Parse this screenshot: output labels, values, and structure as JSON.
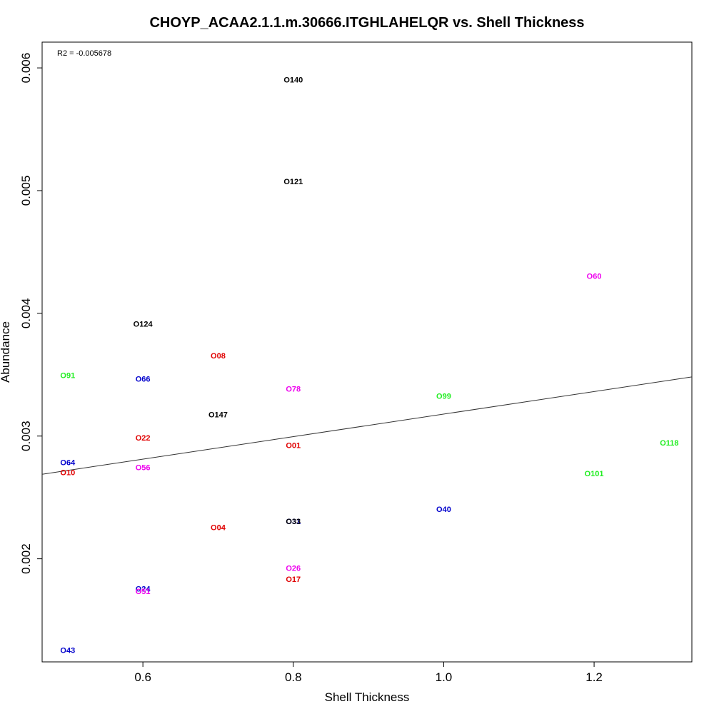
{
  "chart_data": {
    "type": "scatter",
    "title": "CHOYP_ACAA2.1.1.m.30666.ITGHLAHELQR vs. Shell Thickness",
    "xlabel": "Shell Thickness",
    "ylabel": "Abundance",
    "xlim": [
      0.466,
      1.33
    ],
    "ylim": [
      0.00116,
      0.00621
    ],
    "x_ticks": [
      0.6,
      0.8,
      1.0,
      1.2
    ],
    "x_tick_labels": [
      "0.6",
      "0.8",
      "1.0",
      "1.2"
    ],
    "y_ticks": [
      0.002,
      0.003,
      0.004,
      0.005,
      0.006
    ],
    "y_tick_labels": [
      "0.002",
      "0.003",
      "0.004",
      "0.005",
      "0.006"
    ],
    "grid": false,
    "legend": "none",
    "annotation": "R2 = -0.005678",
    "regression_line": {
      "intercept": 0.002261,
      "slope": 0.000918
    },
    "colors": {
      "black": "#000000",
      "red": "#e00000",
      "blue": "#0000cc",
      "green": "#22ee22",
      "magenta": "#ee00ee"
    },
    "points": [
      {
        "label": "O140",
        "x": 0.8,
        "y": 0.0059,
        "color": "black"
      },
      {
        "label": "O121",
        "x": 0.8,
        "y": 0.00507,
        "color": "black"
      },
      {
        "label": "O60",
        "x": 1.2,
        "y": 0.0043,
        "color": "magenta"
      },
      {
        "label": "O124",
        "x": 0.6,
        "y": 0.00391,
        "color": "black"
      },
      {
        "label": "O08",
        "x": 0.7,
        "y": 0.00365,
        "color": "red"
      },
      {
        "label": "O91",
        "x": 0.5,
        "y": 0.00349,
        "color": "green"
      },
      {
        "label": "O66",
        "x": 0.6,
        "y": 0.00346,
        "color": "blue"
      },
      {
        "label": "O78",
        "x": 0.8,
        "y": 0.00338,
        "color": "magenta"
      },
      {
        "label": "O99",
        "x": 1.0,
        "y": 0.00332,
        "color": "green"
      },
      {
        "label": "O147",
        "x": 0.7,
        "y": 0.00317,
        "color": "black"
      },
      {
        "label": "O22",
        "x": 0.6,
        "y": 0.00298,
        "color": "red"
      },
      {
        "label": "O118",
        "x": 1.3,
        "y": 0.00294,
        "color": "green"
      },
      {
        "label": "O01",
        "x": 0.8,
        "y": 0.00292,
        "color": "red"
      },
      {
        "label": "O64",
        "x": 0.5,
        "y": 0.00278,
        "color": "blue"
      },
      {
        "label": "O56",
        "x": 0.6,
        "y": 0.00274,
        "color": "magenta"
      },
      {
        "label": "O10",
        "x": 0.5,
        "y": 0.0027,
        "color": "red"
      },
      {
        "label": "O101",
        "x": 1.2,
        "y": 0.00269,
        "color": "green"
      },
      {
        "label": "O40",
        "x": 1.0,
        "y": 0.0024,
        "color": "blue"
      },
      {
        "label": "O31",
        "x": 0.8,
        "y": 0.0023,
        "color": "blue"
      },
      {
        "label": "O33",
        "x": 0.8,
        "y": 0.0023,
        "color": "black"
      },
      {
        "label": "O04",
        "x": 0.7,
        "y": 0.00225,
        "color": "red"
      },
      {
        "label": "O26",
        "x": 0.8,
        "y": 0.00192,
        "color": "magenta"
      },
      {
        "label": "O17",
        "x": 0.8,
        "y": 0.00183,
        "color": "red"
      },
      {
        "label": "O24",
        "x": 0.6,
        "y": 0.00175,
        "color": "blue"
      },
      {
        "label": "O51",
        "x": 0.6,
        "y": 0.00173,
        "color": "magenta"
      },
      {
        "label": "O43",
        "x": 0.5,
        "y": 0.00125,
        "color": "blue"
      }
    ]
  }
}
